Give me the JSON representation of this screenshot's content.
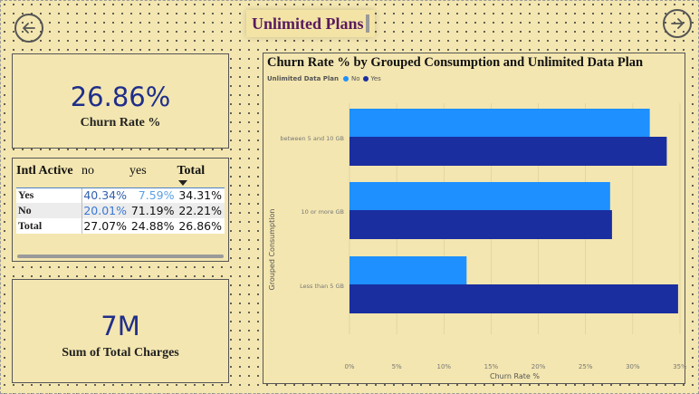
{
  "header": {
    "title": "Unlimited Plans",
    "back_icon": "arrow-left-circle-icon",
    "forward_icon": "arrow-right-circle-icon"
  },
  "kpis": {
    "churn_rate": {
      "value": "26.86%",
      "label": "Churn Rate %"
    },
    "total_charges": {
      "value": "7M",
      "label": "Sum of Total Charges"
    }
  },
  "matrix": {
    "columns": [
      "Intl Active",
      "no",
      "yes",
      "Total"
    ],
    "rows": [
      {
        "label": "Yes",
        "values": [
          "40.34%",
          "7.59%",
          "34.31%"
        ]
      },
      {
        "label": "No",
        "values": [
          "20.01%",
          "71.19%",
          "22.21%"
        ]
      },
      {
        "label": "Total",
        "values": [
          "27.07%",
          "24.88%",
          "26.86%"
        ]
      }
    ],
    "value_colors": [
      [
        "#2f5fb0",
        "#5aa0e6",
        "#111111"
      ],
      [
        "#3a78d4",
        "#111111",
        "#111111"
      ],
      [
        "#111111",
        "#111111",
        "#111111"
      ]
    ]
  },
  "chart_data": {
    "type": "bar",
    "orientation": "horizontal",
    "title": "Churn Rate % by Grouped Consumption and Unlimited Data Plan",
    "legend_title": "Unlimited Data Plan",
    "xlabel": "Churn Rate %",
    "ylabel": "Grouped Consumption",
    "categories": [
      "between 5 and 10 GB",
      "10 or more GB",
      "Less than 5 GB"
    ],
    "series": [
      {
        "name": "No",
        "color": "#1e90ff",
        "values": [
          31.8,
          27.6,
          12.4
        ]
      },
      {
        "name": "Yes",
        "color": "#1a2ea0",
        "values": [
          33.6,
          27.8,
          34.8
        ]
      }
    ],
    "xlim": [
      0,
      35
    ],
    "xticks": [
      "0%",
      "5%",
      "10%",
      "15%",
      "20%",
      "25%",
      "30%",
      "35%"
    ],
    "grid": true,
    "legend_position": "top-left"
  }
}
